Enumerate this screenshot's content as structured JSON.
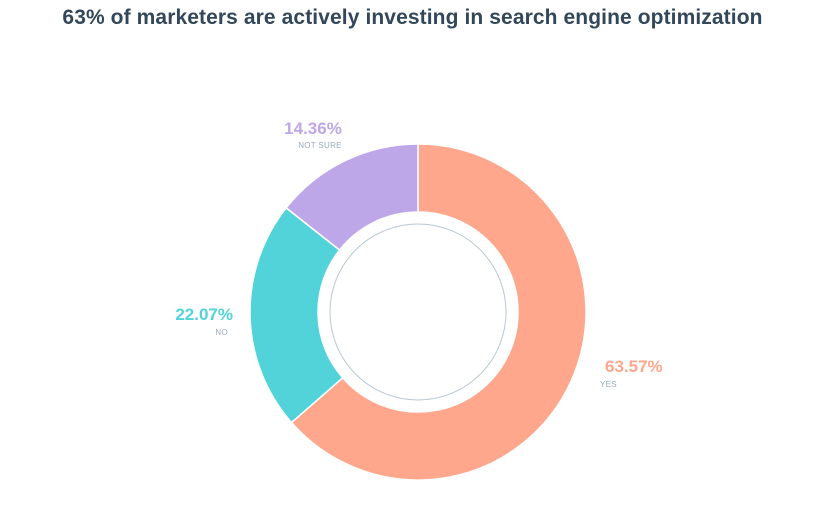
{
  "chart_data": {
    "type": "pie",
    "title": "63% of marketers are actively investing in search engine optimization",
    "categories": [
      "YES",
      "NO",
      "NOT SURE"
    ],
    "values": [
      63.57,
      22.07,
      14.36
    ],
    "value_labels": [
      "63.57%",
      "22.07%",
      "14.36%"
    ],
    "colors": [
      "#ffa78c",
      "#51d3d9",
      "#bea7e9"
    ],
    "donut": true,
    "legend": "none"
  }
}
